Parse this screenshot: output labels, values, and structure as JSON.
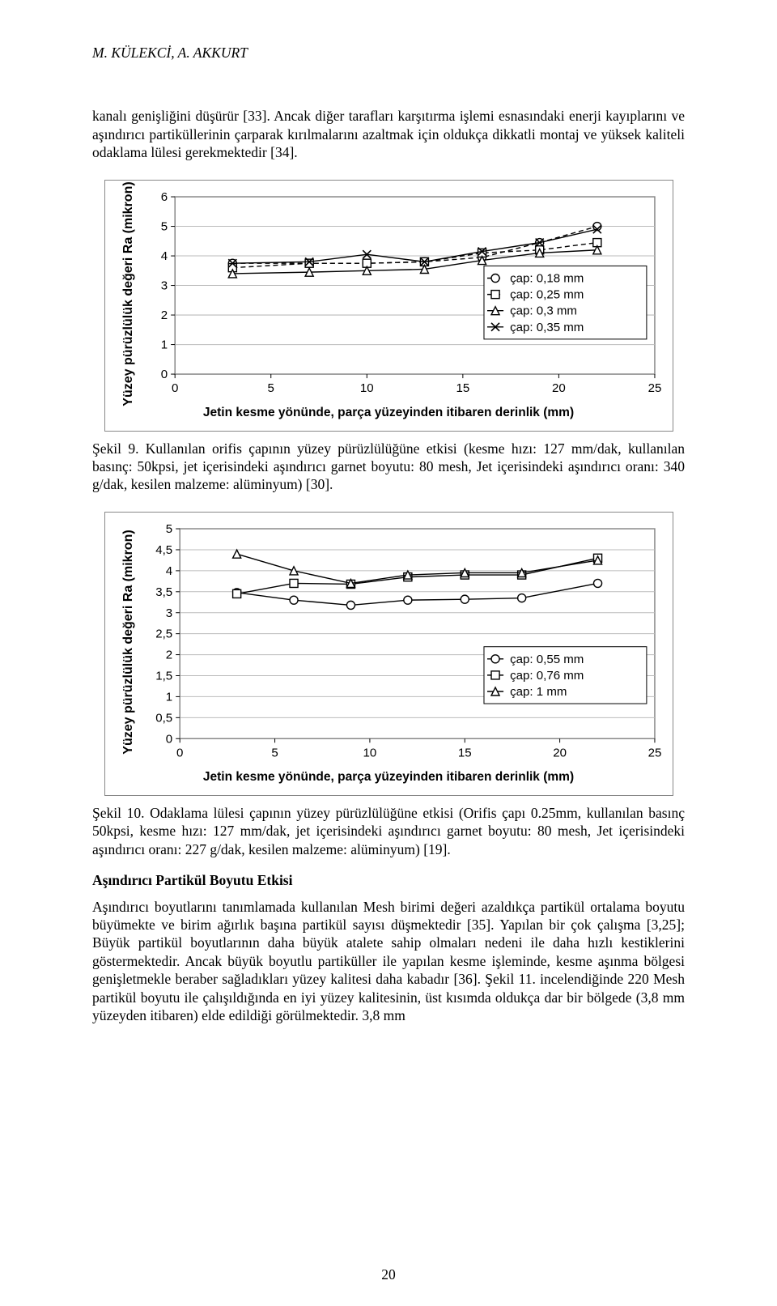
{
  "header": {
    "running_head": "M. KÜLEKCİ, A. AKKURT"
  },
  "para1": "kanalı genişliğini düşürür [33]. Ancak diğer tarafları karşıtırma işlemi esnasındaki enerji kayıplarını ve aşındırıcı partiküllerinin çarparak kırılmalarını azaltmak için oldukça dikkatli montaj ve yüksek kaliteli odaklama lülesi gerekmektedir [34].",
  "fig9_caption": "Şekil 9. Kullanılan orifis çapının yüzey pürüzlülüğüne etkisi (kesme hızı: 127 mm/dak, kullanılan basınç: 50kpsi, jet içerisindeki aşındırıcı garnet boyutu: 80 mesh, Jet içerisindeki aşındırıcı oranı: 340 g/dak, kesilen malzeme: alüminyum) [30].",
  "fig10_caption": "Şekil 10. Odaklama lülesi çapının yüzey pürüzlülüğüne etkisi (Orifis çapı 0.25mm, kullanılan basınç 50kpsi, kesme hızı: 127 mm/dak, jet içerisindeki aşındırıcı garnet boyutu: 80 mesh, Jet içerisindeki aşındırıcı oranı: 227 g/dak, kesilen malzeme: alüminyum) [19].",
  "section_title": "Aşındırıcı Partikül Boyutu Etkisi",
  "para2": "Aşındırıcı boyutlarını tanımlamada kullanılan Mesh birimi değeri azaldıkça partikül ortalama boyutu büyümekte ve birim ağırlık başına partikül sayısı düşmektedir [35]. Yapılan bir çok çalışma [3,25]; Büyük partikül boyutlarının daha büyük atalete sahip olmaları nedeni ile daha hızlı kestiklerini göstermektedir. Ancak büyük boyutlu partiküller ile yapılan kesme işleminde, kesme aşınma bölgesi genişletmekle beraber sağladıkları yüzey kalitesi daha kabadır [36]. Şekil 11. incelendiğinde 220 Mesh partikül boyutu ile çalışıldığında en iyi yüzey kalitesinin, üst kısımda oldukça dar bir bölgede (3,8 mm yüzeyden itibaren) elde edildiği görülmektedir. 3,8 mm",
  "page_number": "20",
  "chart9": {
    "type": "line-scatter",
    "ylabel": "Yüzey pürüzlülük değeri Ra (mikron)",
    "xaxis_title": "Jetin kesme yönünde, parça yüzeyinden itibaren derinlik (mm)",
    "plot_bg": "#ffffff",
    "grid_color": "#bbbbbb",
    "border_color": "#888888",
    "xlim": [
      0,
      25
    ],
    "xtick_step": 5,
    "ylim": [
      0,
      6
    ],
    "ytick_step": 1,
    "tick_fontsize": 15,
    "label_fontsize": 16,
    "label_weight": "bold",
    "x_values": [
      3,
      7,
      10,
      13,
      16,
      19,
      22
    ],
    "series": [
      {
        "label": "çap: 0,18 mm",
        "marker": "circle",
        "dash": true,
        "y": [
          3.75,
          3.75,
          3.75,
          3.8,
          3.95,
          4.45,
          5.0
        ]
      },
      {
        "label": "çap: 0,25 mm",
        "marker": "square",
        "dash": true,
        "y": [
          3.6,
          3.75,
          3.75,
          3.8,
          4.1,
          4.2,
          4.45
        ]
      },
      {
        "label": "çap: 0,3 mm",
        "marker": "triangle",
        "dash": false,
        "y": [
          3.4,
          3.45,
          3.5,
          3.55,
          3.85,
          4.1,
          4.2
        ]
      },
      {
        "label": "çap: 0,35 mm",
        "marker": "cross",
        "dash": false,
        "y": [
          3.75,
          3.8,
          4.05,
          3.8,
          4.15,
          4.45,
          4.9
        ]
      }
    ]
  },
  "chart10": {
    "type": "line-scatter",
    "ylabel": "Yüzey pürüzlülük değeri Ra (mikron)",
    "xaxis_title": "Jetin kesme yönünde, parça yüzeyinden itibaren derinlik (mm)",
    "plot_bg": "#ffffff",
    "grid_color": "#bbbbbb",
    "border_color": "#888888",
    "xlim": [
      0,
      25
    ],
    "xtick_step": 5,
    "ylim": [
      0,
      5
    ],
    "ytick_step": 0.5,
    "ytick_format": "comma",
    "tick_fontsize": 15,
    "label_fontsize": 16,
    "label_weight": "bold",
    "x_values": [
      3,
      6,
      9,
      12,
      15,
      18,
      22
    ],
    "series": [
      {
        "label": "çap: 0,55 mm",
        "marker": "circle",
        "dash": false,
        "y": [
          3.48,
          3.3,
          3.18,
          3.3,
          3.32,
          3.35,
          3.7
        ]
      },
      {
        "label": "çap: 0,76 mm",
        "marker": "square",
        "dash": false,
        "y": [
          3.45,
          3.7,
          3.68,
          3.85,
          3.9,
          3.9,
          4.3
        ]
      },
      {
        "label": "çap: 1 mm",
        "marker": "triangle",
        "dash": false,
        "y": [
          4.4,
          4.0,
          3.7,
          3.9,
          3.95,
          3.95,
          4.25
        ]
      }
    ]
  }
}
